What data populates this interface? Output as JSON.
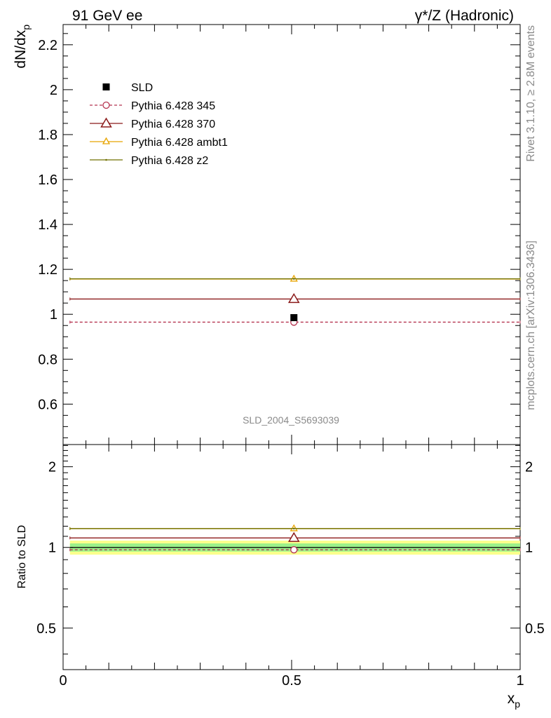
{
  "header": {
    "left": "91 GeV ee",
    "right": "γ*/Z (Hadronic)"
  },
  "side": {
    "rivet": "Rivet 3.1.10, ≥ 2.8M events",
    "mcplots": "mcplots.cern.ch [arXiv:1306.3436]"
  },
  "watermark": "SLD_2004_S5693039",
  "colors": {
    "data": "#000000",
    "p345": "#b5334f",
    "p370": "#8b1a1a",
    "ambt1": "#e8a400",
    "z2": "#707000",
    "band_inner": "#9cf28a",
    "band_outer": "#fbff8c"
  },
  "chart_data": [
    {
      "type": "line",
      "panel": "main",
      "ylabel_main": "dN/dx",
      "ylabel_sub": "p",
      "xlim": [
        0,
        1
      ],
      "ylim": [
        0.42,
        2.29
      ],
      "yticks": [
        0.6,
        0.8,
        1,
        1.2,
        1.4,
        1.6,
        1.8,
        2,
        2.2
      ],
      "yticklabels": [
        "0.6",
        "0.8",
        "1",
        "1.2",
        "1.4",
        "1.6",
        "1.8",
        "2",
        "2.2"
      ],
      "bin": [
        0.015,
        1.0
      ],
      "marker_x": 0.505,
      "legend_position": "top-left",
      "series": [
        {
          "name": "SLD",
          "key": "data",
          "y": 0.985,
          "marker": "square"
        },
        {
          "name": "Pythia 6.428 345",
          "key": "p345",
          "y": 0.965,
          "marker": "circle",
          "dashed": true
        },
        {
          "name": "Pythia 6.428 370",
          "key": "p370",
          "y": 1.068,
          "marker": "triangle-big"
        },
        {
          "name": "Pythia 6.428 ambt1",
          "key": "ambt1",
          "y": 1.157,
          "marker": "triangle-small"
        },
        {
          "name": "Pythia 6.428 z2",
          "key": "z2",
          "y": 1.158,
          "marker": "dot"
        }
      ]
    },
    {
      "type": "line",
      "panel": "ratio",
      "ylabel": "Ratio to SLD",
      "xlabel_main": "x",
      "xlabel_sub": "p",
      "xlim": [
        0,
        1
      ],
      "ylim": [
        0.35,
        2.42
      ],
      "log": true,
      "yticks": [
        0.5,
        1,
        2
      ],
      "yticklabels": [
        "0.5",
        "1",
        "2"
      ],
      "xticks": [
        0,
        0.5,
        1
      ],
      "xticklabels": [
        "0",
        "0.5",
        "1"
      ],
      "band_inner": [
        0.965,
        1.035
      ],
      "band_outer": [
        0.94,
        1.06
      ],
      "series": [
        {
          "key": "p345",
          "y": 0.98,
          "marker": "circle",
          "dashed": true
        },
        {
          "key": "p370",
          "y": 1.085,
          "marker": "triangle-big"
        },
        {
          "key": "ambt1",
          "y": 1.175,
          "marker": "triangle-small"
        },
        {
          "key": "z2",
          "y": 1.176,
          "marker": "dot"
        }
      ]
    }
  ]
}
